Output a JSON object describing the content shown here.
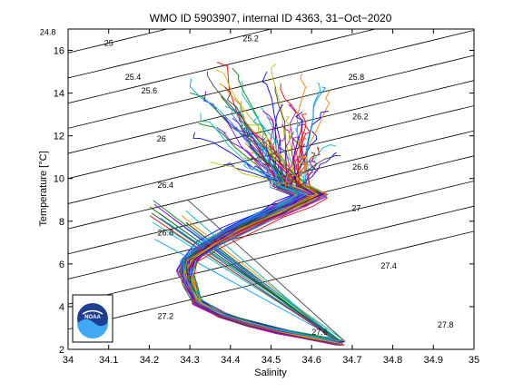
{
  "chart_data": {
    "type": "line",
    "title": "WMO ID 5903907, internal ID 4363, 31−Oct−2020",
    "xlabel": "Salinity",
    "ylabel": "Temperature [°C]",
    "xlim": [
      34,
      35
    ],
    "ylim": [
      2,
      17
    ],
    "xticks": [
      "34",
      "34.1",
      "34.2",
      "34.3",
      "34.4",
      "34.5",
      "34.6",
      "34.7",
      "34.8",
      "34.9",
      "35"
    ],
    "yticks": [
      "2",
      "4",
      "6",
      "8",
      "10",
      "12",
      "14",
      "16"
    ],
    "grid": false,
    "isopycnals": [
      {
        "label": "24.8",
        "ls": 33.95,
        "lt": 16.85
      },
      {
        "label": "25",
        "ls": 34.1,
        "lt": 16.35
      },
      {
        "label": "25.2",
        "ls": 34.45,
        "lt": 16.55
      },
      {
        "label": "25.4",
        "ls": 34.16,
        "lt": 14.75
      },
      {
        "label": "25.6",
        "ls": 34.2,
        "lt": 14.1
      },
      {
        "label": "25.8",
        "ls": 34.71,
        "lt": 14.75
      },
      {
        "label": "26",
        "ls": 34.23,
        "lt": 11.85
      },
      {
        "label": "26.2",
        "ls": 34.72,
        "lt": 12.9
      },
      {
        "label": "26.4",
        "ls": 34.24,
        "lt": 9.7
      },
      {
        "label": "26.6",
        "ls": 34.72,
        "lt": 10.55
      },
      {
        "label": "26.8",
        "ls": 34.24,
        "lt": 7.45
      },
      {
        "label": "27",
        "ls": 34.71,
        "lt": 8.6
      },
      {
        "label": "27.2",
        "ls": 34.24,
        "lt": 3.55
      },
      {
        "label": "27.4",
        "ls": 34.79,
        "lt": 5.9
      },
      {
        "label": "27.6",
        "ls": 34.62,
        "lt": 2.8
      },
      {
        "label": "27.8",
        "ls": 34.93,
        "lt": 3.15
      }
    ],
    "mean_profile": [
      [
        34.67,
        2.3
      ],
      [
        34.6,
        2.55
      ],
      [
        34.52,
        2.85
      ],
      [
        34.45,
        3.2
      ],
      [
        34.38,
        3.6
      ],
      [
        34.32,
        4.2
      ],
      [
        34.3,
        5.0
      ],
      [
        34.29,
        5.6
      ],
      [
        34.3,
        6.2
      ],
      [
        34.35,
        6.9
      ],
      [
        34.42,
        7.6
      ],
      [
        34.5,
        8.3
      ],
      [
        34.56,
        8.8
      ],
      [
        34.6,
        9.2
      ],
      [
        34.55,
        9.6
      ],
      [
        34.47,
        10.3
      ],
      [
        34.44,
        11.5
      ],
      [
        34.42,
        12.6
      ],
      [
        34.42,
        13.5
      ]
    ],
    "profile_count": 80,
    "series_colors": [
      "#0000ff",
      "#ff0000",
      "#008000",
      "#00bfbf",
      "#bf00bf",
      "#bfbf00",
      "#404040",
      "#ff8000",
      "#8000ff",
      "#00a0ff"
    ],
    "noaa_logo": "NOAA"
  }
}
